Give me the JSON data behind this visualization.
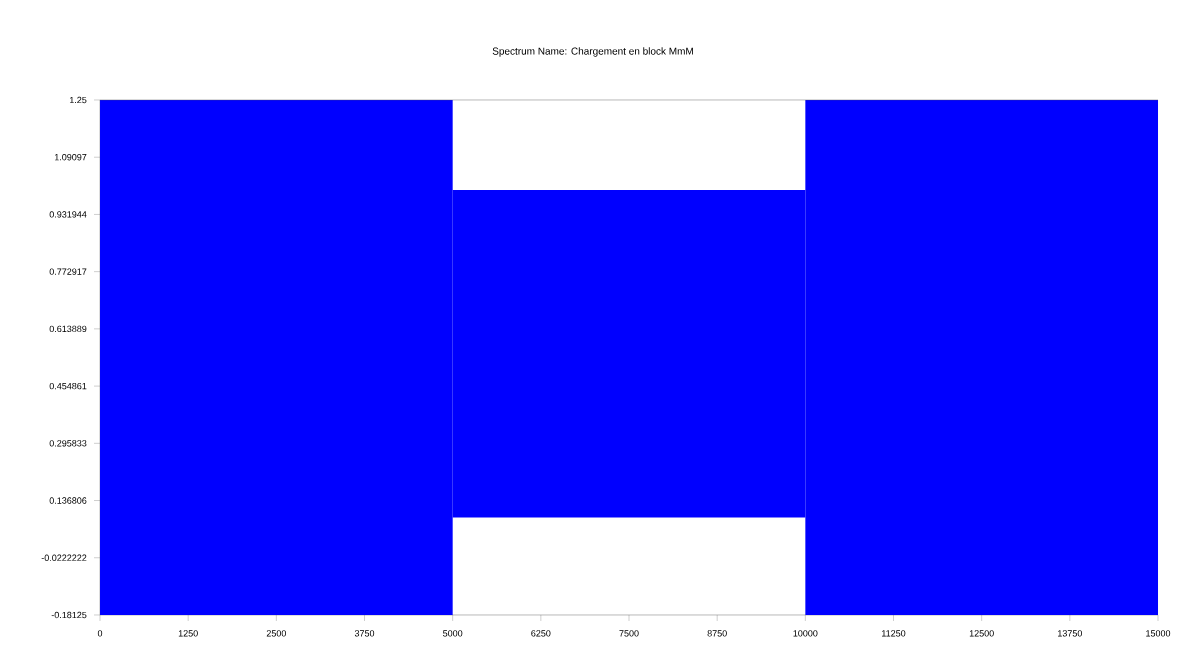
{
  "chart_data": {
    "type": "bar",
    "title": "Spectrum Name: Chargement en block MmM",
    "x": [
      2500,
      7500,
      12500
    ],
    "base": [
      -0.18125,
      0.09,
      -0.18125
    ],
    "values": [
      1.43125,
      0.91,
      1.43125
    ],
    "color": "#0000ff",
    "xlim": [
      0,
      15000
    ],
    "xticks": [
      0,
      1250,
      2500,
      3750,
      5000,
      6250,
      7500,
      8750,
      10000,
      11250,
      12500,
      13750,
      15000
    ],
    "ylim": [
      -0.18125,
      1.25
    ],
    "yticks": [
      -0.18125,
      -0.0222222,
      0.136806,
      0.295833,
      0.454861,
      0.613889,
      0.772917,
      0.931944,
      1.09097,
      1.25
    ],
    "grid": false
  }
}
